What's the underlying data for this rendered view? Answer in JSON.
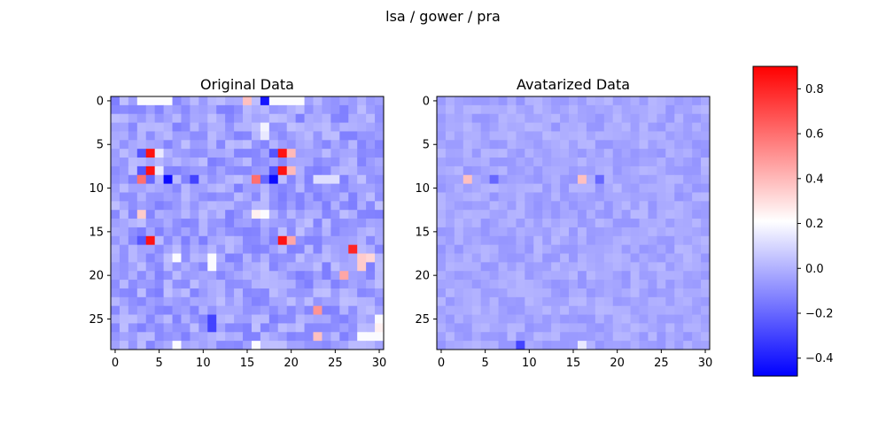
{
  "figure": {
    "suptitle": "lsa / gower / pra"
  },
  "colors": {
    "low": "#0000ff",
    "mid": "#ffffff",
    "high": "#ff0000",
    "base": "#b4bbf8"
  },
  "chart_data": [
    {
      "type": "heatmap",
      "title": "Original Data",
      "rows": 29,
      "cols": 31,
      "xticks": [
        0,
        5,
        10,
        15,
        20,
        25,
        30
      ],
      "yticks": [
        0,
        5,
        10,
        15,
        20,
        25
      ],
      "base_value": -0.05,
      "cells": [
        {
          "r": 0,
          "c": 3,
          "v": 0.2
        },
        {
          "r": 0,
          "c": 4,
          "v": 0.2
        },
        {
          "r": 0,
          "c": 5,
          "v": 0.2
        },
        {
          "r": 0,
          "c": 6,
          "v": 0.2
        },
        {
          "r": 0,
          "c": 15,
          "v": 0.38
        },
        {
          "r": 0,
          "c": 17,
          "v": -0.42
        },
        {
          "r": 0,
          "c": 18,
          "v": 0.2
        },
        {
          "r": 0,
          "c": 19,
          "v": 0.2
        },
        {
          "r": 0,
          "c": 20,
          "v": 0.2
        },
        {
          "r": 0,
          "c": 21,
          "v": 0.2
        },
        {
          "r": 3,
          "c": 17,
          "v": 0.18
        },
        {
          "r": 4,
          "c": 17,
          "v": 0.15
        },
        {
          "r": 6,
          "c": 3,
          "v": -0.25
        },
        {
          "r": 6,
          "c": 4,
          "v": 0.85
        },
        {
          "r": 6,
          "c": 5,
          "v": 0.15
        },
        {
          "r": 6,
          "c": 18,
          "v": -0.25
        },
        {
          "r": 6,
          "c": 19,
          "v": 0.85
        },
        {
          "r": 6,
          "c": 20,
          "v": 0.4
        },
        {
          "r": 8,
          "c": 3,
          "v": -0.25
        },
        {
          "r": 8,
          "c": 4,
          "v": 0.85
        },
        {
          "r": 8,
          "c": 5,
          "v": 0.15
        },
        {
          "r": 8,
          "c": 18,
          "v": -0.25
        },
        {
          "r": 8,
          "c": 19,
          "v": 0.85
        },
        {
          "r": 8,
          "c": 20,
          "v": 0.4
        },
        {
          "r": 9,
          "c": 3,
          "v": 0.6
        },
        {
          "r": 9,
          "c": 4,
          "v": -0.2
        },
        {
          "r": 9,
          "c": 6,
          "v": -0.45
        },
        {
          "r": 9,
          "c": 16,
          "v": 0.6
        },
        {
          "r": 9,
          "c": 17,
          "v": -0.2
        },
        {
          "r": 9,
          "c": 18,
          "v": -0.45
        },
        {
          "r": 9,
          "c": 23,
          "v": 0.12
        },
        {
          "r": 9,
          "c": 24,
          "v": 0.12
        },
        {
          "r": 9,
          "c": 25,
          "v": 0.12
        },
        {
          "r": 13,
          "c": 3,
          "v": 0.35
        },
        {
          "r": 13,
          "c": 16,
          "v": 0.25
        },
        {
          "r": 13,
          "c": 17,
          "v": 0.2
        },
        {
          "r": 16,
          "c": 4,
          "v": 0.85
        },
        {
          "r": 16,
          "c": 3,
          "v": -0.25
        },
        {
          "r": 16,
          "c": 19,
          "v": 0.85
        },
        {
          "r": 16,
          "c": 20,
          "v": 0.45
        },
        {
          "r": 17,
          "c": 27,
          "v": 0.8
        },
        {
          "r": 18,
          "c": 28,
          "v": 0.35
        },
        {
          "r": 18,
          "c": 29,
          "v": 0.32
        },
        {
          "r": 19,
          "c": 28,
          "v": 0.35
        },
        {
          "r": 20,
          "c": 26,
          "v": 0.45
        },
        {
          "r": 24,
          "c": 23,
          "v": 0.5
        },
        {
          "r": 25,
          "c": 30,
          "v": 0.2
        },
        {
          "r": 26,
          "c": 30,
          "v": 0.25
        },
        {
          "r": 27,
          "c": 23,
          "v": 0.38
        },
        {
          "r": 27,
          "c": 28,
          "v": 0.2
        },
        {
          "r": 27,
          "c": 29,
          "v": 0.2
        },
        {
          "r": 27,
          "c": 30,
          "v": 0.2
        },
        {
          "r": 28,
          "c": 16,
          "v": 0.2
        },
        {
          "r": 9,
          "c": 9,
          "v": -0.3
        },
        {
          "r": 19,
          "c": 11,
          "v": 0.2
        },
        {
          "r": 18,
          "c": 11,
          "v": 0.2
        },
        {
          "r": 18,
          "c": 7,
          "v": 0.2
        },
        {
          "r": 28,
          "c": 7,
          "v": 0.2
        },
        {
          "r": 25,
          "c": 11,
          "v": -0.3
        },
        {
          "r": 26,
          "c": 11,
          "v": -0.3
        }
      ]
    },
    {
      "type": "heatmap",
      "title": "Avatarized Data",
      "rows": 29,
      "cols": 31,
      "xticks": [
        0,
        5,
        10,
        15,
        20,
        25,
        30
      ],
      "yticks": [
        0,
        5,
        10,
        15,
        20,
        25
      ],
      "base_value": -0.03,
      "cells": [
        {
          "r": 9,
          "c": 3,
          "v": 0.38
        },
        {
          "r": 9,
          "c": 16,
          "v": 0.38
        },
        {
          "r": 9,
          "c": 6,
          "v": -0.2
        },
        {
          "r": 9,
          "c": 18,
          "v": -0.2
        },
        {
          "r": 28,
          "c": 9,
          "v": -0.3
        },
        {
          "r": 28,
          "c": 16,
          "v": 0.15
        }
      ]
    }
  ],
  "colorbar": {
    "vmin": -0.48,
    "vmax": 0.9,
    "ticks": [
      -0.4,
      -0.2,
      0.0,
      0.2,
      0.4,
      0.6,
      0.8
    ],
    "tick_labels": [
      "−0.4",
      "−0.2",
      "0.0",
      "0.2",
      "0.4",
      "0.6",
      "0.8"
    ]
  }
}
